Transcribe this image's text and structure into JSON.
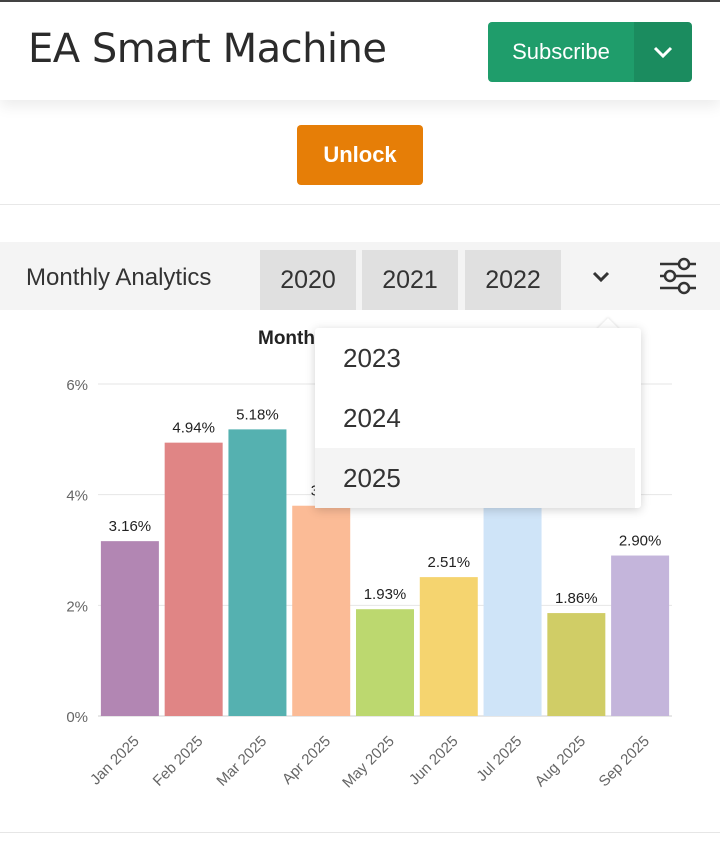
{
  "app": {
    "title": "EA Smart Machine"
  },
  "header": {
    "subscribe_label": "Subscribe",
    "caret_icon": "chevron-down-icon"
  },
  "unlock": {
    "label": "Unlock",
    "color": "#e67e07"
  },
  "toolbar": {
    "label": "Monthly Analytics",
    "years": [
      "2020",
      "2021",
      "2022"
    ],
    "more_icon": "chevron-down-icon",
    "filter_icon": "sliders-icon"
  },
  "dropdown": {
    "options": [
      "2023",
      "2024",
      "2025"
    ],
    "highlighted": "2025"
  },
  "chart_data": {
    "type": "bar",
    "title": "Month",
    "categories": [
      "Jan 2025",
      "Feb 2025",
      "Mar 2025",
      "Apr 2025",
      "May 2025",
      "Jun 2025",
      "Jul 2025",
      "Aug 2025",
      "Sep 2025"
    ],
    "values": [
      3.16,
      4.94,
      5.18,
      3.8,
      1.93,
      2.51,
      3.8,
      1.86,
      2.9
    ],
    "labels": [
      "3.16%",
      "4.94%",
      "5.18%",
      "3.8",
      "1.93%",
      "2.51%",
      "",
      "1.86%",
      "2.90%"
    ],
    "colors": [
      "#b286b3",
      "#e08585",
      "#55b1b0",
      "#fbbb96",
      "#bcd86f",
      "#f5d46f",
      "#cfe4f8",
      "#d0cd66",
      "#c4b5db"
    ],
    "yticks": [
      "0%",
      "2%",
      "4%",
      "6%"
    ],
    "ylim": [
      0,
      6
    ],
    "grid": true
  }
}
